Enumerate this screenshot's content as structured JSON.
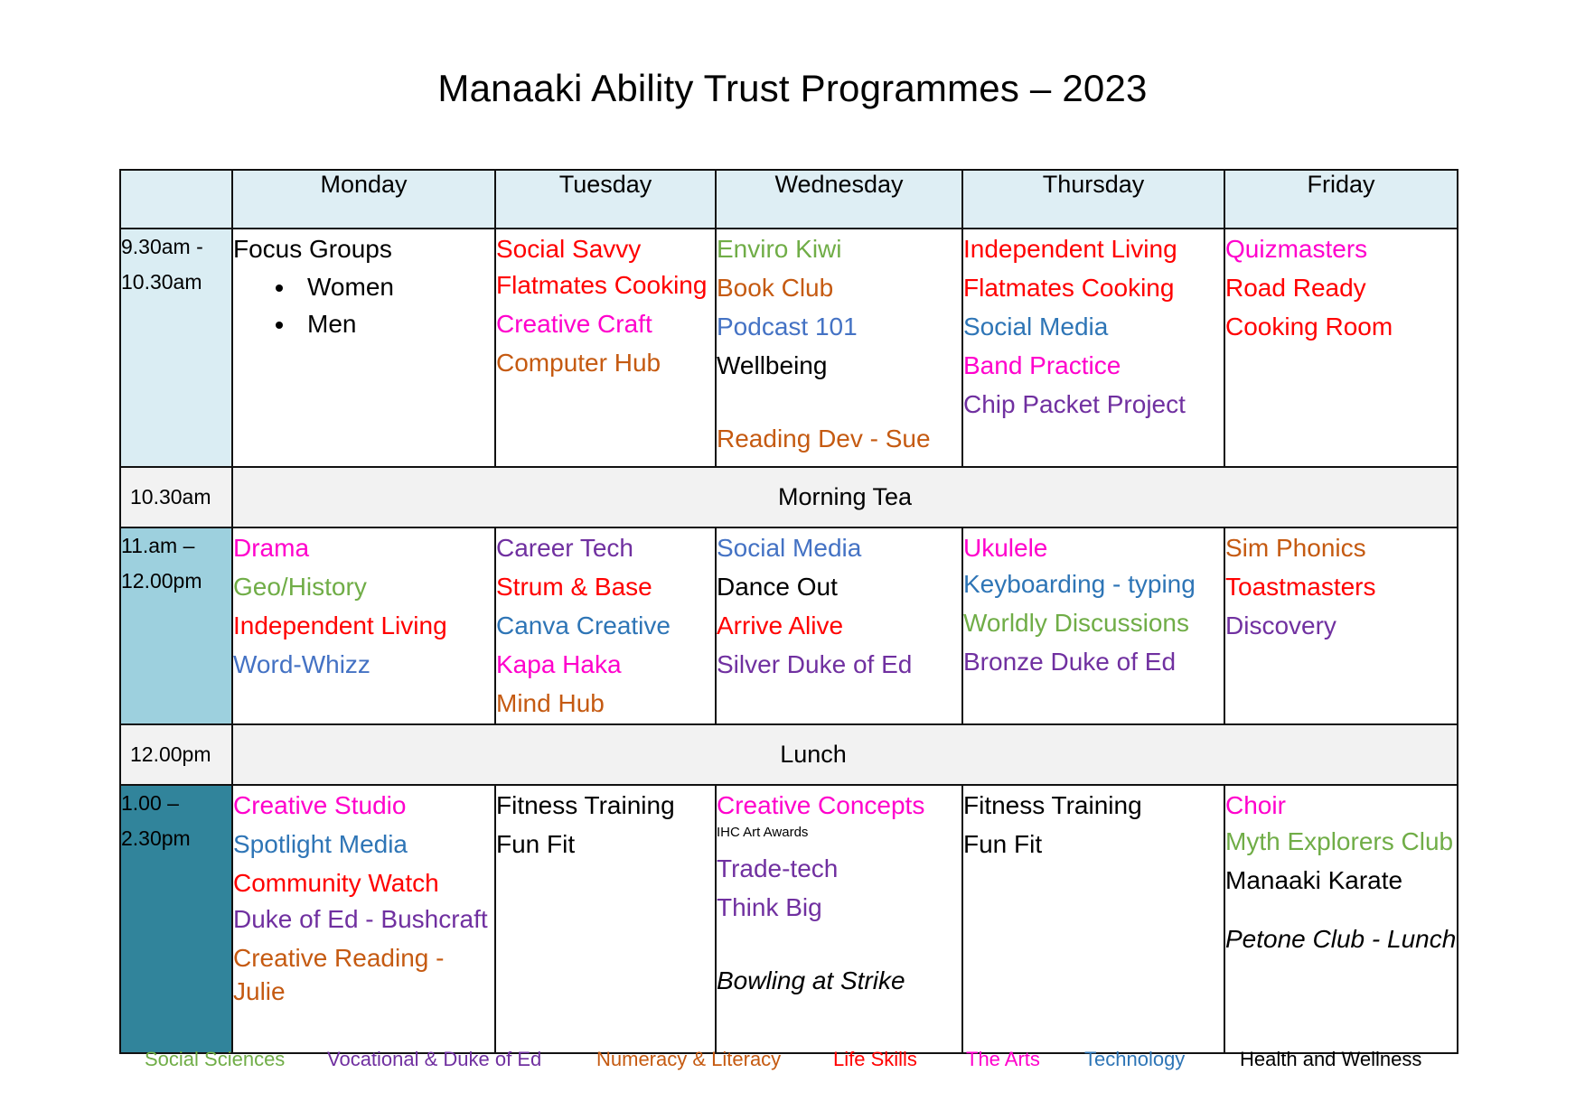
{
  "title": "Manaaki Ability Trust Programmes – 2023",
  "colors": {
    "social_sciences": "#70ad47",
    "vocational": "#7030a0",
    "numeracy": "#c55a11",
    "life_skills": "#ff0000",
    "arts": "#ff00cc",
    "technology": "#2e75b6",
    "health": "#000000",
    "podcast": "#4472c4"
  },
  "days": [
    "Monday",
    "Tuesday",
    "Wednesday",
    "Thursday",
    "Friday"
  ],
  "slots": {
    "s1": "9.30am - 10.30am",
    "s2": "11.am – 12.00pm",
    "s3": "1.00 – 2.30pm"
  },
  "breaks": {
    "morning_tea_time": "10.30am",
    "morning_tea": "Morning Tea",
    "lunch_time": "12.00pm",
    "lunch": "Lunch"
  },
  "mon1": {
    "title": "Focus Groups",
    "items": [
      "Women",
      "Men"
    ]
  },
  "tue1": [
    "Social Savvy",
    "Flatmates Cooking",
    "Creative Craft",
    "Computer Hub"
  ],
  "wed1": [
    "Enviro Kiwi",
    "Book Club",
    "Podcast 101",
    "Wellbeing",
    "Reading Dev - Sue"
  ],
  "thu1": [
    "Independent Living",
    "Flatmates Cooking",
    "Social Media",
    "Band Practice",
    "Chip Packet Project"
  ],
  "fri1": [
    "Quizmasters",
    "Road Ready",
    "Cooking Room"
  ],
  "mon2": [
    "Drama",
    "Geo/History",
    "Independent Living",
    "Word-Whizz"
  ],
  "tue2": [
    "Career Tech",
    "Strum & Base",
    "Canva Creative",
    "Kapa Haka",
    "Mind Hub"
  ],
  "wed2": [
    "Social Media",
    "Dance Out",
    "Arrive Alive",
    "Silver Duke of Ed"
  ],
  "thu2": [
    "Ukulele",
    "Keyboarding - typing",
    "Worldly Discussions",
    "Bronze Duke of Ed"
  ],
  "fri2": [
    "Sim Phonics",
    "Toastmasters",
    "Discovery"
  ],
  "mon3": [
    "Creative Studio",
    "Spotlight Media",
    "Community Watch",
    "Duke of Ed - Bushcraft",
    "Creative Reading - Julie"
  ],
  "tue3": [
    "Fitness Training",
    "Fun Fit"
  ],
  "wed3": [
    "Creative Concepts",
    "IHC Art Awards",
    "Trade-tech",
    "Think Big",
    "Bowling at Strike"
  ],
  "thu3": [
    "Fitness Training",
    "Fun Fit"
  ],
  "fri3": [
    "Choir",
    "Myth Explorers Club",
    "Manaaki Karate",
    "Petone Club - Lunch"
  ],
  "legend": [
    "Social Sciences",
    "Vocational & Duke of Ed",
    "Numeracy & Literacy",
    "Life Skills",
    "The Arts",
    "Technology",
    "Health and Wellness"
  ]
}
